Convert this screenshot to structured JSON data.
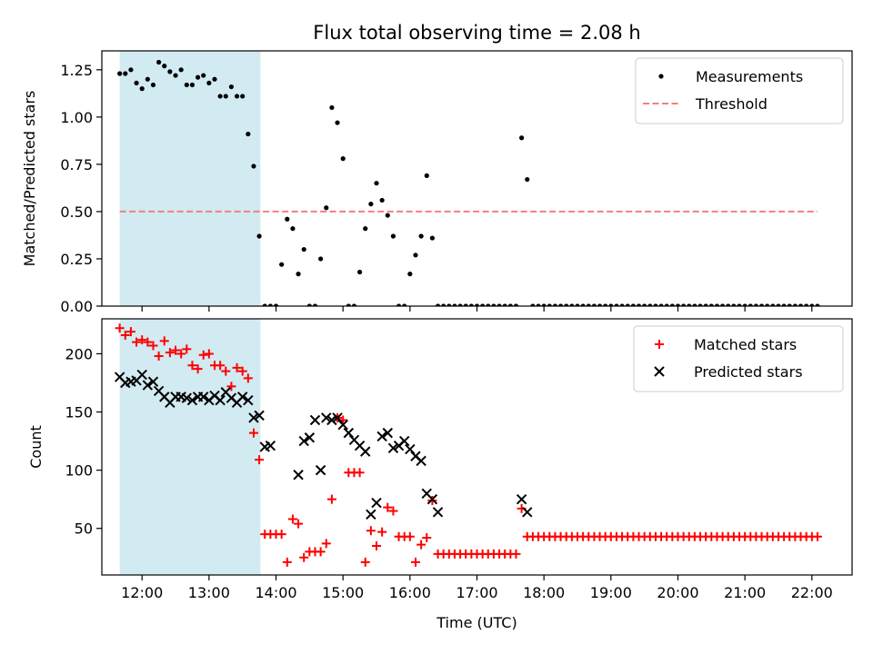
{
  "title": "Flux total observing time = 2.08 h",
  "chart_data": [
    {
      "type": "scatter",
      "ylabel": "Matched/Predicted stars",
      "xlabel": "",
      "xlim": [
        "11:24",
        "22:36"
      ],
      "ylim": [
        0,
        1.35
      ],
      "yticks": [
        0,
        0.25,
        0.5,
        0.75,
        1.0,
        1.25
      ],
      "ytick_labels": [
        "0.00",
        "0.25",
        "0.50",
        "0.75",
        "1.00",
        "1.25"
      ],
      "shaded_interval": [
        "11:40",
        "13:46"
      ],
      "shade_color": "#add8e6",
      "legend_position": "upper right",
      "series": [
        {
          "name": "Measurements",
          "marker": "dot",
          "color": "#000000",
          "x": [
            "11:40",
            "11:45",
            "11:50",
            "11:55",
            "12:00",
            "12:05",
            "12:10",
            "12:15",
            "12:20",
            "12:25",
            "12:30",
            "12:35",
            "12:40",
            "12:45",
            "12:50",
            "12:55",
            "13:00",
            "13:05",
            "13:10",
            "13:15",
            "13:20",
            "13:25",
            "13:30",
            "13:35",
            "13:40",
            "13:45",
            "13:50",
            "13:55",
            "14:00",
            "14:05",
            "14:10",
            "14:15",
            "14:20",
            "14:25",
            "14:30",
            "14:35",
            "14:40",
            "14:45",
            "14:50",
            "14:55",
            "15:00",
            "15:05",
            "15:10",
            "15:15",
            "15:20",
            "15:25",
            "15:30",
            "15:35",
            "15:40",
            "15:45",
            "15:50",
            "15:55",
            "16:00",
            "16:05",
            "16:10",
            "16:15",
            "16:20",
            "16:25",
            "16:30",
            "16:35",
            "16:40",
            "16:45",
            "16:50",
            "16:55",
            "17:00",
            "17:05",
            "17:10",
            "17:15",
            "17:20",
            "17:25",
            "17:30",
            "17:35",
            "17:40",
            "17:45",
            "17:50",
            "17:55",
            "18:00",
            "18:05",
            "18:10",
            "18:15",
            "18:20",
            "18:25",
            "18:30",
            "18:35",
            "18:40",
            "18:45",
            "18:50",
            "18:55",
            "19:00",
            "19:05",
            "19:10",
            "19:15",
            "19:20",
            "19:25",
            "19:30",
            "19:35",
            "19:40",
            "19:45",
            "19:50",
            "19:55",
            "20:00",
            "20:05",
            "20:10",
            "20:15",
            "20:20",
            "20:25",
            "20:30",
            "20:35",
            "20:40",
            "20:45",
            "20:50",
            "20:55",
            "21:00",
            "21:05",
            "21:10",
            "21:15",
            "21:20",
            "21:25",
            "21:30",
            "21:35",
            "21:40",
            "21:45",
            "21:50",
            "21:55",
            "22:00",
            "22:05"
          ],
          "y": [
            1.23,
            1.23,
            1.25,
            1.18,
            1.15,
            1.2,
            1.17,
            1.29,
            1.27,
            1.24,
            1.22,
            1.25,
            1.17,
            1.17,
            1.21,
            1.22,
            1.18,
            1.2,
            1.11,
            1.11,
            1.16,
            1.11,
            1.11,
            0.91,
            0.74,
            0.37,
            0.0,
            0.0,
            0.0,
            0.22,
            0.46,
            0.41,
            0.17,
            0.3,
            0.0,
            0.0,
            0.25,
            0.52,
            1.05,
            0.97,
            0.78,
            0.0,
            0.0,
            0.18,
            0.41,
            0.54,
            0.65,
            0.56,
            0.48,
            0.37,
            0.0,
            0.0,
            0.17,
            0.27,
            0.37,
            0.69,
            0.36,
            0.0,
            0.0,
            0.0,
            0.0,
            0.0,
            0.0,
            0.0,
            0.0,
            0.0,
            0.0,
            0.0,
            0.0,
            0.0,
            0.0,
            0.0,
            0.89,
            0.67,
            0.0,
            0.0,
            0.0,
            0.0,
            0.0,
            0.0,
            0.0,
            0.0,
            0.0,
            0.0,
            0.0,
            0.0,
            0.0,
            0.0,
            0.0,
            0.0,
            0.0,
            0.0,
            0.0,
            0.0,
            0.0,
            0.0,
            0.0,
            0.0,
            0.0,
            0.0,
            0.0,
            0.0,
            0.0,
            0.0,
            0.0,
            0.0,
            0.0,
            0.0,
            0.0,
            0.0,
            0.0,
            0.0,
            0.0,
            0.0,
            0.0,
            0.0,
            0.0,
            0.0,
            0.0,
            0.0,
            0.0,
            0.0,
            0.0,
            0.0,
            0.0,
            0.0
          ]
        },
        {
          "name": "Threshold",
          "marker": "dashed-line",
          "color": "#f08080",
          "x": [
            "11:40",
            "22:05"
          ],
          "y": [
            0.5,
            0.5
          ]
        }
      ]
    },
    {
      "type": "scatter",
      "ylabel": "Count",
      "xlabel": "Time (UTC)",
      "xlim": [
        "11:24",
        "22:36"
      ],
      "ylim": [
        10,
        230
      ],
      "yticks": [
        50,
        100,
        150,
        200
      ],
      "ytick_labels": [
        "50",
        "100",
        "150",
        "200"
      ],
      "xticks": [
        "12:00",
        "13:00",
        "14:00",
        "15:00",
        "16:00",
        "17:00",
        "18:00",
        "19:00",
        "20:00",
        "21:00",
        "22:00"
      ],
      "shaded_interval": [
        "11:40",
        "13:46"
      ],
      "shade_color": "#add8e6",
      "legend_position": "upper right",
      "series": [
        {
          "name": "Matched stars",
          "marker": "plus",
          "color": "#ff0000",
          "x": [
            "11:40",
            "11:45",
            "11:50",
            "11:55",
            "12:00",
            "12:05",
            "12:10",
            "12:15",
            "12:20",
            "12:25",
            "12:30",
            "12:35",
            "12:40",
            "12:45",
            "12:50",
            "12:55",
            "13:00",
            "13:05",
            "13:10",
            "13:15",
            "13:20",
            "13:25",
            "13:30",
            "13:35",
            "13:40",
            "13:45",
            "13:50",
            "13:55",
            "14:00",
            "14:05",
            "14:10",
            "14:15",
            "14:20",
            "14:25",
            "14:30",
            "14:35",
            "14:40",
            "14:45",
            "14:50",
            "14:55",
            "15:00",
            "15:05",
            "15:10",
            "15:15",
            "15:20",
            "15:25",
            "15:30",
            "15:35",
            "15:40",
            "15:45",
            "15:50",
            "15:55",
            "16:00",
            "16:05",
            "16:10",
            "16:15",
            "16:20",
            "16:25",
            "16:30",
            "16:35",
            "16:40",
            "16:45",
            "16:50",
            "16:55",
            "17:00",
            "17:05",
            "17:10",
            "17:15",
            "17:20",
            "17:25",
            "17:30",
            "17:35",
            "17:40",
            "17:45",
            "17:50",
            "17:55",
            "18:00",
            "18:05",
            "18:10",
            "18:15",
            "18:20",
            "18:25",
            "18:30",
            "18:35",
            "18:40",
            "18:45",
            "18:50",
            "18:55",
            "19:00",
            "19:05",
            "19:10",
            "19:15",
            "19:20",
            "19:25",
            "19:30",
            "19:35",
            "19:40",
            "19:45",
            "19:50",
            "19:55",
            "20:00",
            "20:05",
            "20:10",
            "20:15",
            "20:20",
            "20:25",
            "20:30",
            "20:35",
            "20:40",
            "20:45",
            "20:50",
            "20:55",
            "21:00",
            "21:05",
            "21:10",
            "21:15",
            "21:20",
            "21:25",
            "21:30",
            "21:35",
            "21:40",
            "21:45",
            "21:50",
            "21:55",
            "22:00",
            "22:05"
          ],
          "y": [
            222,
            216,
            219,
            210,
            212,
            210,
            207,
            198,
            211,
            201,
            203,
            200,
            204,
            190,
            187,
            199,
            200,
            190,
            190,
            185,
            172,
            188,
            185,
            179,
            132,
            109,
            45,
            45,
            45,
            45,
            21,
            58,
            54,
            25,
            30,
            30,
            30,
            37,
            75,
            145,
            143,
            98,
            98,
            98,
            21,
            48,
            35,
            47,
            68,
            65,
            43,
            43,
            43,
            21,
            36,
            42,
            74,
            28,
            28,
            28,
            28,
            28,
            28,
            28,
            28,
            28,
            28,
            28,
            28,
            28,
            28,
            28,
            67,
            43,
            43,
            43,
            43,
            43,
            43,
            43,
            43,
            43,
            43,
            43,
            43,
            43,
            43,
            43,
            43,
            43,
            43,
            43,
            43,
            43,
            43,
            43,
            43,
            43,
            43,
            43,
            43,
            43,
            43,
            43,
            43,
            43,
            43,
            43,
            43,
            43,
            43,
            43,
            43,
            43,
            43,
            43,
            43,
            43,
            43,
            43,
            43,
            43,
            43,
            43,
            43,
            43
          ]
        },
        {
          "name": "Predicted stars",
          "marker": "x",
          "color": "#000000",
          "x": [
            "11:40",
            "11:45",
            "11:50",
            "11:55",
            "12:00",
            "12:05",
            "12:10",
            "12:15",
            "12:20",
            "12:25",
            "12:30",
            "12:35",
            "12:40",
            "12:45",
            "12:50",
            "12:55",
            "13:00",
            "13:05",
            "13:10",
            "13:15",
            "13:20",
            "13:25",
            "13:30",
            "13:35",
            "13:40",
            "13:45",
            "13:50",
            "13:55",
            "14:20",
            "14:25",
            "14:30",
            "14:35",
            "14:40",
            "14:45",
            "14:50",
            "14:55",
            "15:00",
            "15:05",
            "15:10",
            "15:15",
            "15:20",
            "15:25",
            "15:30",
            "15:35",
            "15:40",
            "15:45",
            "15:50",
            "15:55",
            "16:00",
            "16:05",
            "16:10",
            "16:15",
            "16:20",
            "16:25",
            "17:40",
            "17:45"
          ],
          "y": [
            180,
            175,
            176,
            177,
            182,
            173,
            176,
            168,
            163,
            158,
            163,
            163,
            162,
            160,
            163,
            163,
            160,
            164,
            160,
            167,
            162,
            158,
            163,
            160,
            145,
            147,
            120,
            121,
            96,
            125,
            128,
            143,
            100,
            145,
            143,
            145,
            139,
            132,
            126,
            121,
            116,
            62,
            72,
            129,
            132,
            119,
            121,
            125,
            118,
            112,
            108,
            80,
            75,
            64,
            75,
            64
          ]
        }
      ]
    }
  ]
}
